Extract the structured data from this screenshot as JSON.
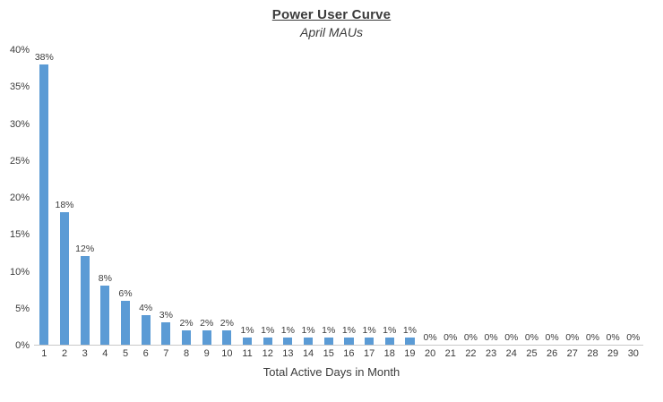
{
  "chart_data": {
    "type": "bar",
    "title": "Power User Curve",
    "subtitle": "April MAUs",
    "xlabel": "Total Active Days in Month",
    "ylabel": "",
    "ylim": [
      0,
      40
    ],
    "yticks": [
      0,
      5,
      10,
      15,
      20,
      25,
      30,
      35,
      40
    ],
    "ytick_labels": [
      "0%",
      "5%",
      "10%",
      "15%",
      "20%",
      "25%",
      "30%",
      "35%",
      "40%"
    ],
    "categories": [
      "1",
      "2",
      "3",
      "4",
      "5",
      "6",
      "7",
      "8",
      "9",
      "10",
      "11",
      "12",
      "13",
      "14",
      "15",
      "16",
      "17",
      "18",
      "19",
      "20",
      "21",
      "22",
      "23",
      "24",
      "25",
      "26",
      "27",
      "28",
      "29",
      "30"
    ],
    "values": [
      38,
      18,
      12,
      8,
      6,
      4,
      3,
      2,
      2,
      2,
      1,
      1,
      1,
      1,
      1,
      1,
      1,
      1,
      1,
      0,
      0,
      0,
      0,
      0,
      0,
      0,
      0,
      0,
      0,
      0
    ],
    "value_labels": [
      "38%",
      "18%",
      "12%",
      "8%",
      "6%",
      "4%",
      "3%",
      "2%",
      "2%",
      "2%",
      "1%",
      "1%",
      "1%",
      "1%",
      "1%",
      "1%",
      "1%",
      "1%",
      "1%",
      "0%",
      "0%",
      "0%",
      "0%",
      "0%",
      "0%",
      "0%",
      "0%",
      "0%",
      "0%",
      "0%"
    ],
    "bar_color": "#5b9bd5",
    "text_color": "#3b3b3b",
    "grid": false,
    "legend": "none"
  }
}
